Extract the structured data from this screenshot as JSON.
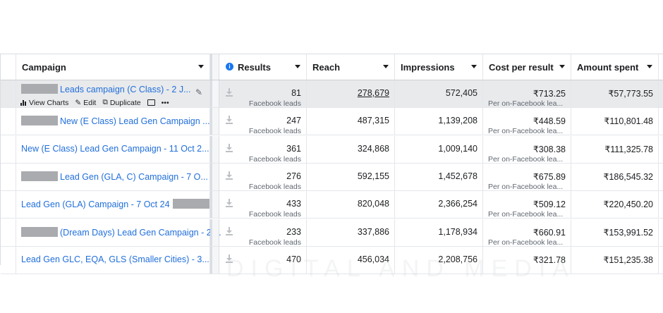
{
  "headers": {
    "campaign": "Campaign",
    "results": "Results",
    "reach": "Reach",
    "impressions": "Impressions",
    "cost_per_result": "Cost per result",
    "amount_spent": "Amount spent"
  },
  "row_actions": {
    "view_charts": "View Charts",
    "edit": "Edit",
    "duplicate": "Duplicate",
    "more": "•••"
  },
  "rows": [
    {
      "name": "Leads campaign (C Class) - 2 J...",
      "redact": "start",
      "results": "81",
      "results_sub": "Facebook leads",
      "reach": "278,679",
      "impressions": "572,405",
      "cost": "₹713.25",
      "cost_sub": "Per on-Facebook lea...",
      "amount": "₹57,773.55"
    },
    {
      "name": "New (E Class) Lead Gen Campaign ...",
      "redact": "start",
      "results": "247",
      "results_sub": "Facebook leads",
      "reach": "487,315",
      "impressions": "1,139,208",
      "cost": "₹448.59",
      "cost_sub": "Per on-Facebook lea...",
      "amount": "₹110,801.48"
    },
    {
      "name": "New (E Class) Lead Gen Campaign - 11 Oct 2...",
      "redact": "none",
      "results": "361",
      "results_sub": "Facebook leads",
      "reach": "324,868",
      "impressions": "1,009,140",
      "cost": "₹308.38",
      "cost_sub": "Per on-Facebook lea...",
      "amount": "₹111,325.78"
    },
    {
      "name": "Lead Gen (GLA, C) Campaign - 7 O...",
      "redact": "start",
      "results": "276",
      "results_sub": "Facebook leads",
      "reach": "592,155",
      "impressions": "1,452,678",
      "cost": "₹675.89",
      "cost_sub": "Per on-Facebook lea...",
      "amount": "₹186,545.32"
    },
    {
      "name": "Lead Gen (GLA) Campaign - 7 Oct 24",
      "redact": "end",
      "results": "433",
      "results_sub": "Facebook leads",
      "reach": "820,048",
      "impressions": "2,366,254",
      "cost": "₹509.12",
      "cost_sub": "Per on-Facebook lea...",
      "amount": "₹220,450.20"
    },
    {
      "name": "(Dream Days) Lead Gen Campaign - 2 ...",
      "redact": "start",
      "results": "233",
      "results_sub": "Facebook leads",
      "reach": "337,886",
      "impressions": "1,178,934",
      "cost": "₹660.91",
      "cost_sub": "Per on-Facebook lea...",
      "amount": "₹153,991.52"
    },
    {
      "name": "Lead Gen GLC, EQA, GLS (Smaller Cities) - 3...",
      "redact": "none",
      "results": "470",
      "results_sub": "",
      "reach": "456,034",
      "impressions": "2,208,756",
      "cost": "₹321.78",
      "cost_sub": "",
      "amount": "₹151,235.38"
    }
  ],
  "watermark": "DIGITAL AND MEDIA",
  "colors": {
    "link": "#216fdb",
    "selected_row": "#e9eaec",
    "info": "#1877f2"
  }
}
